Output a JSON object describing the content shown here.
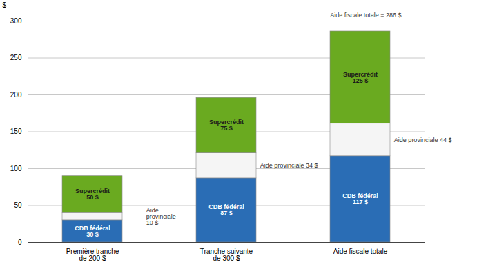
{
  "chart_data": {
    "type": "bar",
    "stacked": true,
    "categories": [
      "Première tranche\nde 200 $",
      "Tranche suivante\nde 300 $",
      "Aide fiscale totale"
    ],
    "series": [
      {
        "color": "#2a6db5",
        "values": [
          30,
          87,
          117
        ],
        "value_labels": [
          "CDB fédéral\n30 $",
          "CDB fédéral\n87 $",
          "CDB fédéral\n117 $"
        ]
      },
      {
        "color": "#f5f5f5",
        "values": [
          10,
          34,
          44
        ],
        "value_labels": [
          "Aide\nprovinciale\n10 $",
          "Aide provinciale 34 $",
          "Aide provinciale 44 $"
        ]
      },
      {
        "color": "#6aaa20",
        "values": [
          50,
          75,
          125
        ],
        "value_labels": [
          "Supercrédit\n50 $",
          "Supercrédit\n75 $",
          "Supercrédit\n125 $"
        ]
      }
    ],
    "ylabel": "$",
    "ylim": [
      0,
      300
    ],
    "yticks": [
      0,
      50,
      100,
      150,
      200,
      250,
      300
    ],
    "grid": true,
    "data_labels": true,
    "annotations": [
      "Aide fiscale totale = 286 $"
    ]
  }
}
